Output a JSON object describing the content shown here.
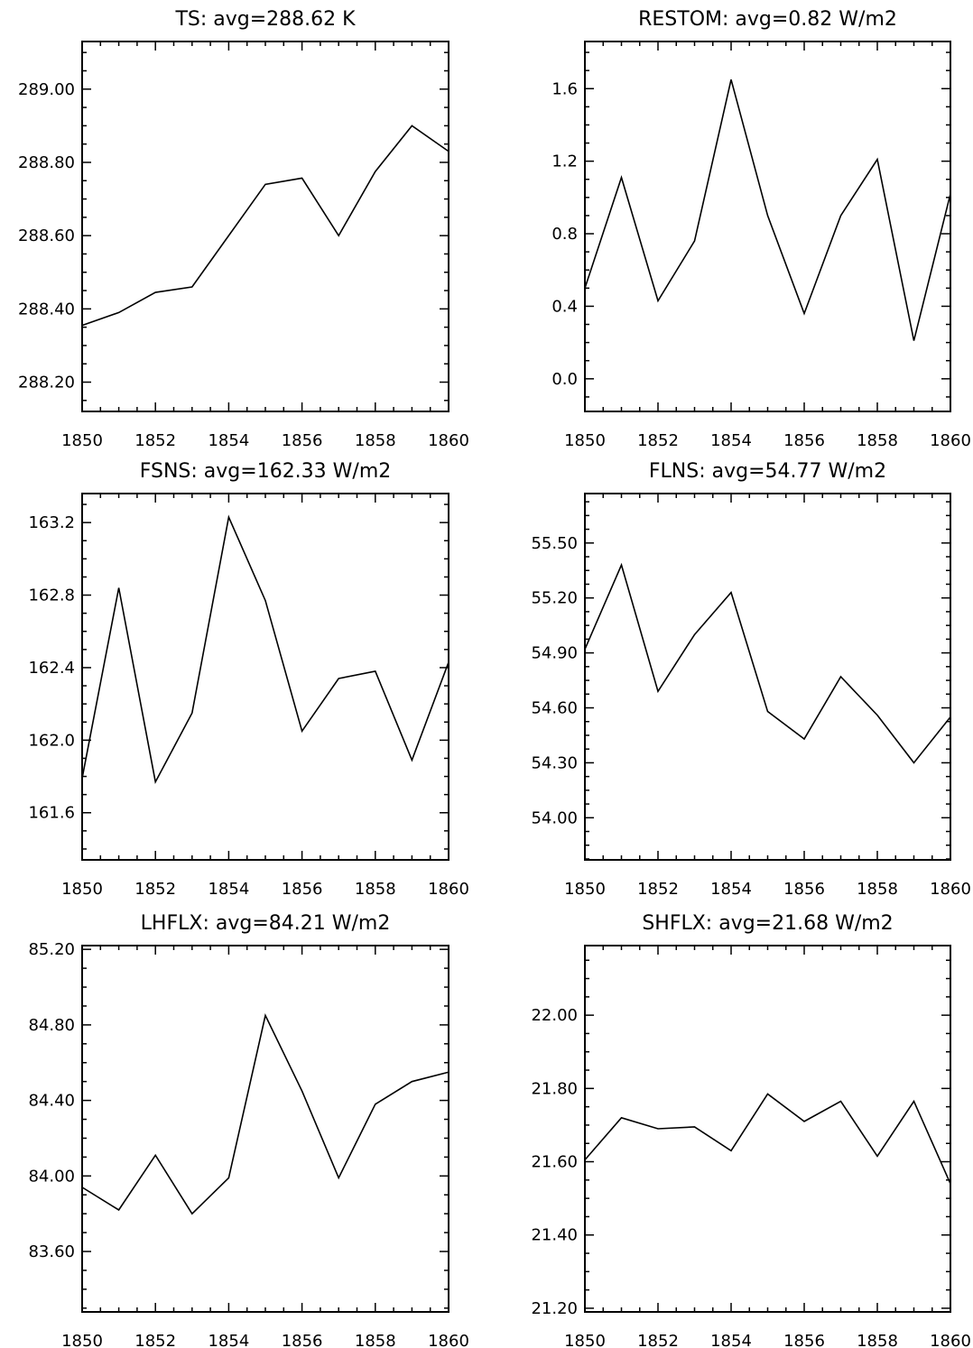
{
  "chart_data": [
    {
      "type": "line",
      "title": "TS: avg=288.62 K",
      "x": [
        1850,
        1851,
        1852,
        1853,
        1854,
        1855,
        1856,
        1857,
        1858,
        1859,
        1860
      ],
      "series": [
        {
          "values": [
            288.355,
            288.39,
            288.445,
            288.46,
            288.6,
            288.74,
            288.757,
            288.6,
            288.775,
            288.9,
            288.83
          ]
        }
      ],
      "xlim": [
        1850,
        1860
      ],
      "ylim": [
        288.12,
        289.13
      ],
      "xticks": [
        1850,
        1852,
        1854,
        1856,
        1858,
        1860
      ],
      "yticks": [
        288.2,
        288.4,
        288.6,
        288.8,
        289.0
      ],
      "ytick_labels": [
        "288.20",
        "288.40",
        "288.60",
        "288.80",
        "289.00"
      ],
      "grid": false
    },
    {
      "type": "line",
      "title": "RESTOM: avg=0.82 W/m2",
      "x": [
        1850,
        1851,
        1852,
        1853,
        1854,
        1855,
        1856,
        1857,
        1858,
        1859,
        1860
      ],
      "series": [
        {
          "values": [
            0.5,
            1.11,
            0.43,
            0.76,
            1.65,
            0.9,
            0.36,
            0.9,
            1.21,
            0.21,
            1.02
          ]
        }
      ],
      "xlim": [
        1850,
        1860
      ],
      "ylim": [
        -0.18,
        1.86
      ],
      "xticks": [
        1850,
        1852,
        1854,
        1856,
        1858,
        1860
      ],
      "yticks": [
        0.0,
        0.4,
        0.8,
        1.2,
        1.6
      ],
      "ytick_labels": [
        "0.0",
        "0.4",
        "0.8",
        "1.2",
        "1.6"
      ],
      "grid": false
    },
    {
      "type": "line",
      "title": "FSNS: avg=162.33 W/m2",
      "x": [
        1850,
        1851,
        1852,
        1853,
        1854,
        1855,
        1856,
        1857,
        1858,
        1859,
        1860
      ],
      "series": [
        {
          "values": [
            161.79,
            162.84,
            161.77,
            162.15,
            163.23,
            162.77,
            162.05,
            162.34,
            162.38,
            161.89,
            162.43
          ]
        }
      ],
      "xlim": [
        1850,
        1860
      ],
      "ylim": [
        161.34,
        163.36
      ],
      "xticks": [
        1850,
        1852,
        1854,
        1856,
        1858,
        1860
      ],
      "yticks": [
        161.6,
        162.0,
        162.4,
        162.8,
        163.2
      ],
      "ytick_labels": [
        "161.6",
        "162.0",
        "162.4",
        "162.8",
        "163.2"
      ],
      "grid": false
    },
    {
      "type": "line",
      "title": "FLNS: avg=54.77 W/m2",
      "x": [
        1850,
        1851,
        1852,
        1853,
        1854,
        1855,
        1856,
        1857,
        1858,
        1859,
        1860
      ],
      "series": [
        {
          "values": [
            54.92,
            55.38,
            54.69,
            55.0,
            55.23,
            54.58,
            54.43,
            54.77,
            54.56,
            54.3,
            54.55
          ]
        }
      ],
      "xlim": [
        1850,
        1860
      ],
      "ylim": [
        53.77,
        55.77
      ],
      "xticks": [
        1850,
        1852,
        1854,
        1856,
        1858,
        1860
      ],
      "yticks": [
        54.0,
        54.3,
        54.6,
        54.9,
        55.2,
        55.5
      ],
      "ytick_labels": [
        "54.00",
        "54.30",
        "54.60",
        "54.90",
        "55.20",
        "55.50"
      ],
      "grid": false
    },
    {
      "type": "line",
      "title": "LHFLX: avg=84.21 W/m2",
      "x": [
        1850,
        1851,
        1852,
        1853,
        1854,
        1855,
        1856,
        1857,
        1858,
        1859,
        1860
      ],
      "series": [
        {
          "values": [
            83.94,
            83.82,
            84.11,
            83.8,
            83.99,
            84.85,
            84.45,
            83.99,
            84.38,
            84.5,
            84.55
          ]
        }
      ],
      "xlim": [
        1850,
        1860
      ],
      "ylim": [
        83.28,
        85.22
      ],
      "xticks": [
        1850,
        1852,
        1854,
        1856,
        1858,
        1860
      ],
      "yticks": [
        83.6,
        84.0,
        84.4,
        84.8,
        85.2
      ],
      "ytick_labels": [
        "83.60",
        "84.00",
        "84.40",
        "84.80",
        "85.20"
      ],
      "grid": false
    },
    {
      "type": "line",
      "title": "SHFLX: avg=21.68 W/m2",
      "x": [
        1850,
        1851,
        1852,
        1853,
        1854,
        1855,
        1856,
        1857,
        1858,
        1859,
        1860
      ],
      "series": [
        {
          "values": [
            21.605,
            21.72,
            21.69,
            21.695,
            21.63,
            21.785,
            21.71,
            21.765,
            21.615,
            21.765,
            21.54
          ]
        }
      ],
      "xlim": [
        1850,
        1860
      ],
      "ylim": [
        21.19,
        22.19
      ],
      "xticks": [
        1850,
        1852,
        1854,
        1856,
        1858,
        1860
      ],
      "yticks": [
        21.2,
        21.4,
        21.6,
        21.8,
        22.0
      ],
      "ytick_labels": [
        "21.20",
        "21.40",
        "21.60",
        "21.80",
        "22.00"
      ],
      "grid": false
    }
  ]
}
